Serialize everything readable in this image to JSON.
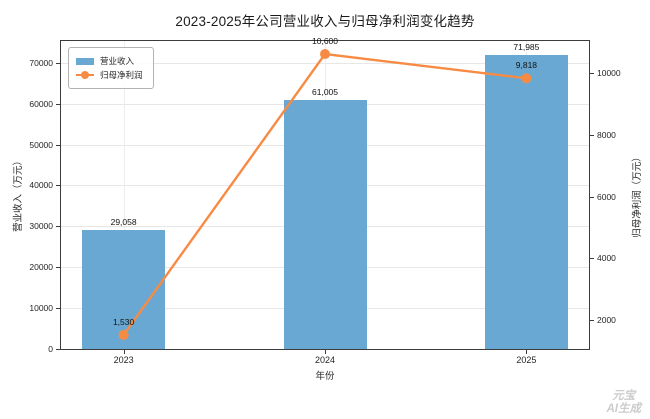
{
  "title": "2023-2025年公司营业收入与归母净利润变化趋势",
  "chart_data": {
    "type": "bar+line",
    "title": "2023-2025年公司营业收入与归母净利润变化趋势",
    "categories": [
      "2023",
      "2024",
      "2025"
    ],
    "series": [
      {
        "name": "营业收入",
        "style": "bar",
        "axis": "left",
        "color": "#69a8d2",
        "values": [
          29058,
          61005,
          71985
        ],
        "value_labels": [
          "29,058",
          "61,005",
          "71,985"
        ]
      },
      {
        "name": "归母净利润",
        "style": "line",
        "axis": "right",
        "color": "#f78b44",
        "values": [
          1530,
          10600,
          9818
        ],
        "value_labels": [
          "1,530",
          "10,600",
          "9,818"
        ]
      }
    ],
    "xlabel": "年份",
    "ylabel_left": "营业收入（万元）",
    "ylabel_right": "归母净利润（万元）",
    "yticks_left": [
      0,
      10000,
      20000,
      30000,
      40000,
      50000,
      60000,
      70000
    ],
    "yticks_right": [
      2000,
      4000,
      6000,
      8000,
      10000
    ],
    "ylim_left": [
      0,
      75584
    ],
    "ylim_right": [
      1076,
      11054
    ],
    "grid": true,
    "legend_position": "upper-left"
  },
  "watermark": {
    "line1": "元宝",
    "line2": "AI生成"
  }
}
